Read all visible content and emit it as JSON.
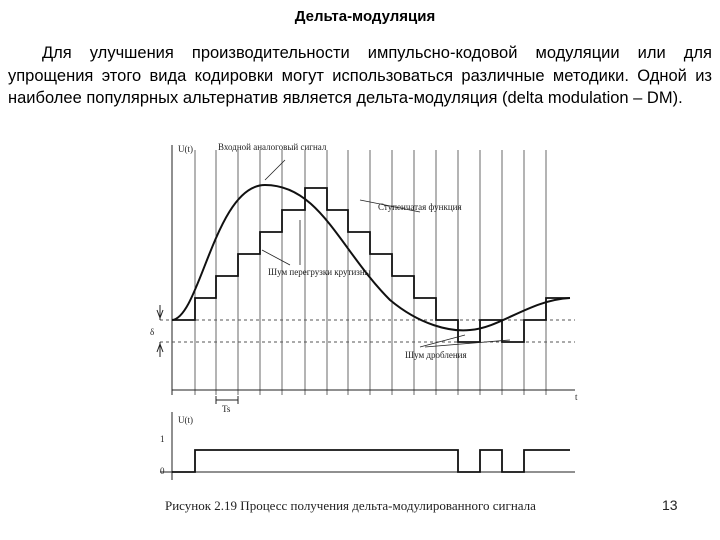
{
  "title": "Дельта-модуляция",
  "paragraph": "Для улучшения производительности импульсно-кодовой модуляции или для упрощения этого вида кодировки могут использоваться различные методики. Одной из наиболее популярных альтернатив является дельта-модуляция (delta modulation – DM).",
  "figure": {
    "labels": {
      "y_axis": "U(t)",
      "input_signal": "Входной аналоговый сигнал",
      "step_function": "Ступенчатая функция",
      "slope_noise": "Шум перегрузки крутизны",
      "granular_noise": "Шум дробления",
      "delta": "δ",
      "period": "Ts",
      "t_axis": "t",
      "y2_axis": "U(t)",
      "one": "1",
      "zero": "0"
    },
    "caption": "Рисунок 2.19 Процесс получения дельта-модулированного сигнала"
  },
  "page_number": "13"
}
